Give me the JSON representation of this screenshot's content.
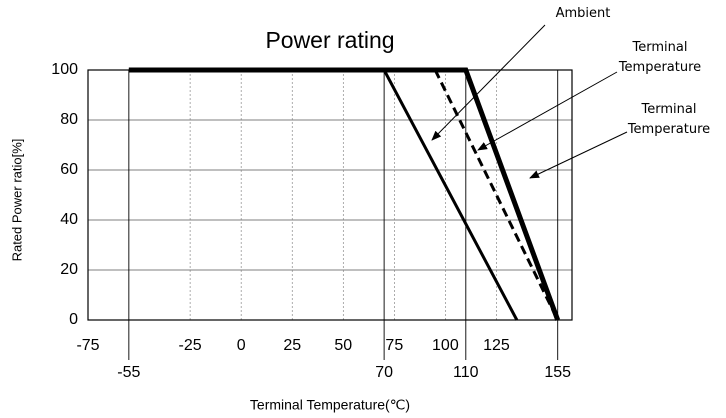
{
  "chart_data": {
    "type": "line",
    "title": "Power rating",
    "xlabel": "Terminal Temperature(℃)",
    "ylabel": "Rated Power ratio[%]",
    "xlim": [
      -75,
      162
    ],
    "ylim": [
      0,
      100
    ],
    "xticks": [
      -75,
      -25,
      0,
      25,
      50,
      75,
      100,
      125
    ],
    "xticks2": [
      -55,
      70,
      110,
      155
    ],
    "yticks": [
      0,
      20,
      40,
      60,
      80,
      100
    ],
    "grid": true,
    "series": [
      {
        "name": "Ambient",
        "color": "#000000",
        "line_width": 3,
        "dash": false,
        "x": [
          -55,
          70,
          135
        ],
        "values": [
          100,
          100,
          0
        ]
      },
      {
        "name": "Terminal Temperature",
        "color": "#000000",
        "line_width": 3,
        "dash": true,
        "x": [
          95,
          155
        ],
        "values": [
          100,
          0
        ]
      },
      {
        "name": "Terminal Temperature",
        "color": "#000000",
        "line_width": 5,
        "dash": false,
        "x": [
          -55,
          110,
          155
        ],
        "values": [
          100,
          100,
          0
        ]
      }
    ]
  }
}
